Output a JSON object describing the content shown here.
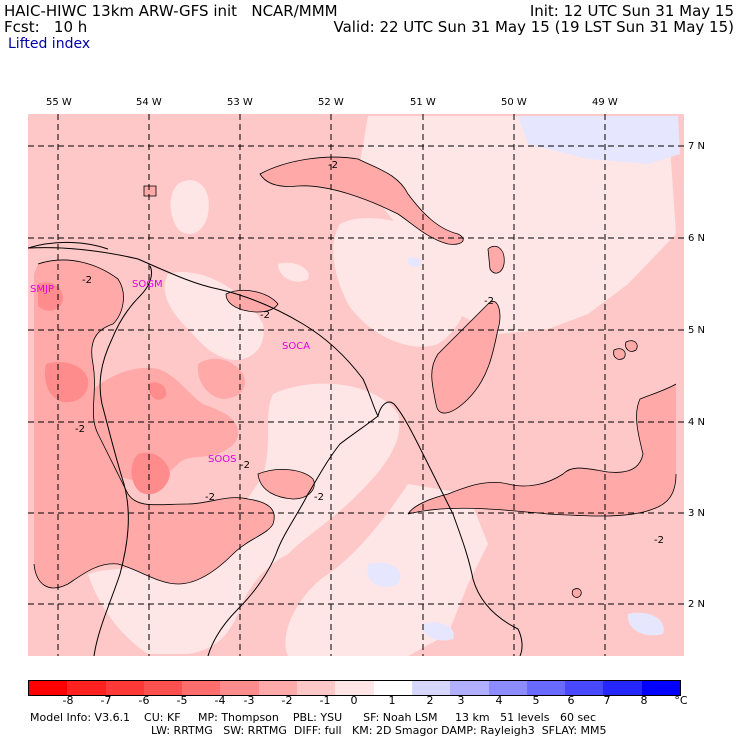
{
  "header": {
    "left_line1": "HAIC-HIWC 13km ARW-GFS init   NCAR/MMM",
    "left_line2": "Fcst:   10 h",
    "right_line1": "Init: 12 UTC Sun 31 May 15",
    "right_line2": "Valid: 22 UTC Sun 31 May 15 (19 LST Sun 31 May 15)",
    "field": "Lifted index"
  },
  "map": {
    "lon_labels": [
      "55 W",
      "54 W",
      "53 W",
      "52 W",
      "51 W",
      "50 W",
      "49 W"
    ],
    "lat_labels": [
      "7 N",
      "6 N",
      "5 N",
      "4 N",
      "3 N",
      "2 N"
    ],
    "stations": [
      "SMJP",
      "SOGM",
      "SOCA",
      "SOOS"
    ],
    "contour_label": "-2",
    "colors": {
      "neg1": "#ffe6e6",
      "neg2": "#ffc8c8",
      "neg3": "#ffa9a9",
      "neg4": "#ff8c8c",
      "pos": "#e6e6ff",
      "station": "#e000e0"
    }
  },
  "colorbar": {
    "labels": [
      "-8",
      "-7",
      "-6",
      "-5",
      "-4",
      "-3",
      "-2",
      "-1",
      "0",
      "1",
      "2",
      "3",
      "4",
      "5",
      "6",
      "7",
      "8"
    ],
    "unit": "°C",
    "colors": [
      "#ff0000",
      "#ff2020",
      "#ff3838",
      "#ff5050",
      "#ff6e6e",
      "#ff8c8c",
      "#ffa9a9",
      "#ffc8c8",
      "#ffe6e6",
      "#ffffff",
      "#d6d6ff",
      "#b0b0ff",
      "#8c8cff",
      "#6a6aff",
      "#4848ff",
      "#2626ff",
      "#0000ff"
    ]
  },
  "footer": {
    "line1": "Model Info: V3.6.1    CU: KF     MP: Thompson    PBL: YSU      SF: Noah LSM     13 km   51 levels   60 sec",
    "line2": "LW: RRTMG   SW: RRTMG  DIFF: full   KM: 2D Smagor DAMP: Rayleigh3  SFLAY: MM5"
  }
}
